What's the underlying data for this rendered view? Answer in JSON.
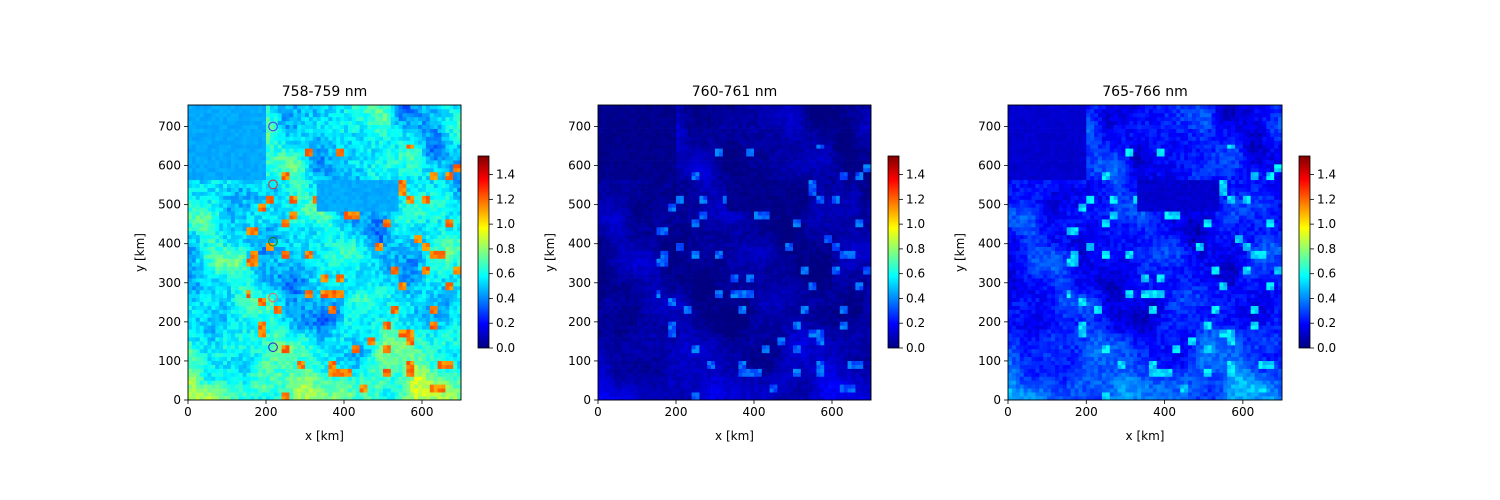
{
  "chart_data": [
    {
      "type": "heatmap",
      "title": "758-759 nm",
      "xlabel": "x [km]",
      "ylabel": "y [km]",
      "xlim": [
        0,
        700
      ],
      "ylim": [
        0,
        755
      ],
      "xticks": [
        "0",
        "200",
        "400",
        "600"
      ],
      "yticks": [
        "0",
        "100",
        "200",
        "300",
        "400",
        "500",
        "600",
        "700"
      ],
      "colormap": "jet",
      "clim": [
        0,
        1.55
      ],
      "colorbar_ticks": [
        "0.0",
        "0.2",
        "0.4",
        "0.6",
        "0.8",
        "1.0",
        "1.2",
        "1.4"
      ],
      "field": {
        "background": 0.55,
        "southwest_level": 0.75,
        "northwest_clear_level": 0.45,
        "streaks": 0.2,
        "hotspots": 1.25
      },
      "markers": [
        {
          "x": 218,
          "y": 700,
          "color": "#4b3cff"
        },
        {
          "x": 218,
          "y": 552,
          "color": "#e03030"
        },
        {
          "x": 218,
          "y": 405,
          "color": "#1a7a1a"
        },
        {
          "x": 218,
          "y": 262,
          "color": "#e07070"
        },
        {
          "x": 218,
          "y": 135,
          "color": "#3030d0"
        }
      ]
    },
    {
      "type": "heatmap",
      "title": "760-761 nm",
      "xlabel": "x [km]",
      "ylabel": "y [km]",
      "xlim": [
        0,
        700
      ],
      "ylim": [
        0,
        755
      ],
      "xticks": [
        "0",
        "200",
        "400",
        "600"
      ],
      "yticks": [
        "0",
        "100",
        "200",
        "300",
        "400",
        "500",
        "600",
        "700"
      ],
      "colormap": "jet",
      "clim": [
        0,
        1.55
      ],
      "colorbar_ticks": [
        "0.0",
        "0.2",
        "0.4",
        "0.6",
        "0.8",
        "1.0",
        "1.2",
        "1.4"
      ],
      "field": {
        "background": 0.05,
        "southwest_level": 0.12,
        "northwest_clear_level": 0.02,
        "streaks": 0.08,
        "hotspots": 0.42
      }
    },
    {
      "type": "heatmap",
      "title": "765-766 nm",
      "xlabel": "x [km]",
      "ylabel": "y [km]",
      "xlim": [
        0,
        700
      ],
      "ylim": [
        0,
        755
      ],
      "xticks": [
        "0",
        "200",
        "400",
        "600"
      ],
      "yticks": [
        "0",
        "100",
        "200",
        "300",
        "400",
        "500",
        "600",
        "700"
      ],
      "colormap": "jet",
      "clim": [
        0,
        1.55
      ],
      "colorbar_ticks": [
        "0.0",
        "0.2",
        "0.4",
        "0.6",
        "0.8",
        "1.0",
        "1.2",
        "1.4"
      ],
      "field": {
        "background": 0.22,
        "southwest_level": 0.38,
        "northwest_clear_level": 0.12,
        "streaks": 0.14,
        "hotspots": 0.6
      }
    }
  ]
}
